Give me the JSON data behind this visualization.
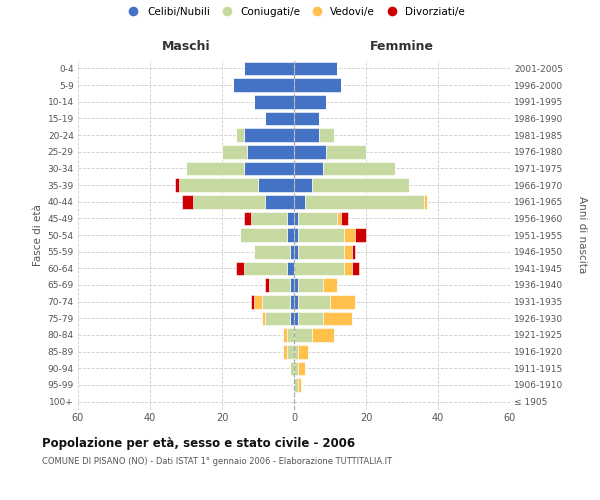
{
  "age_groups": [
    "100+",
    "95-99",
    "90-94",
    "85-89",
    "80-84",
    "75-79",
    "70-74",
    "65-69",
    "60-64",
    "55-59",
    "50-54",
    "45-49",
    "40-44",
    "35-39",
    "30-34",
    "25-29",
    "20-24",
    "15-19",
    "10-14",
    "5-9",
    "0-4"
  ],
  "birth_years": [
    "≤ 1905",
    "1906-1910",
    "1911-1915",
    "1916-1920",
    "1921-1925",
    "1926-1930",
    "1931-1935",
    "1936-1940",
    "1941-1945",
    "1946-1950",
    "1951-1955",
    "1956-1960",
    "1961-1965",
    "1966-1970",
    "1971-1975",
    "1976-1980",
    "1981-1985",
    "1986-1990",
    "1991-1995",
    "1996-2000",
    "2001-2005"
  ],
  "male_celibi": [
    0,
    0,
    0,
    0,
    0,
    1,
    1,
    1,
    2,
    1,
    2,
    2,
    8,
    10,
    14,
    13,
    14,
    8,
    11,
    17,
    14
  ],
  "male_coniugati": [
    0,
    0,
    1,
    2,
    2,
    7,
    8,
    6,
    12,
    10,
    13,
    10,
    20,
    22,
    16,
    7,
    2,
    0,
    0,
    0,
    0
  ],
  "male_vedovi": [
    0,
    0,
    0,
    1,
    1,
    1,
    2,
    0,
    0,
    0,
    0,
    0,
    0,
    0,
    0,
    0,
    0,
    0,
    0,
    0,
    0
  ],
  "male_divorziati": [
    0,
    0,
    0,
    0,
    0,
    0,
    1,
    1,
    2,
    0,
    0,
    2,
    3,
    1,
    0,
    0,
    0,
    0,
    0,
    0,
    0
  ],
  "female_nubili": [
    0,
    0,
    0,
    0,
    0,
    1,
    1,
    1,
    0,
    1,
    1,
    1,
    3,
    5,
    8,
    9,
    7,
    7,
    9,
    13,
    12
  ],
  "female_coniugate": [
    0,
    1,
    1,
    1,
    5,
    7,
    9,
    7,
    14,
    13,
    13,
    11,
    33,
    27,
    20,
    11,
    4,
    0,
    0,
    0,
    0
  ],
  "female_vedove": [
    0,
    1,
    2,
    3,
    6,
    8,
    7,
    4,
    2,
    2,
    3,
    1,
    1,
    0,
    0,
    0,
    0,
    0,
    0,
    0,
    0
  ],
  "female_divorziate": [
    0,
    0,
    0,
    0,
    0,
    0,
    0,
    0,
    2,
    1,
    3,
    2,
    0,
    0,
    0,
    0,
    0,
    0,
    0,
    0,
    0
  ],
  "color_celibi": "#4472c4",
  "color_coniugati": "#c5d9a0",
  "color_vedovi": "#ffc04c",
  "color_divorziati": "#cc0000",
  "xlim": 60,
  "title": "Popolazione per età, sesso e stato civile - 2006",
  "subtitle": "COMUNE DI PISANO (NO) - Dati ISTAT 1° gennaio 2006 - Elaborazione TUTTITALIA.IT",
  "ylabel_left": "Fasce di età",
  "ylabel_right": "Anni di nascita",
  "label_maschi": "Maschi",
  "label_femmine": "Femmine",
  "legend_celibi": "Celibi/Nubili",
  "legend_coniugati": "Coniugati/e",
  "legend_vedovi": "Vedovi/e",
  "legend_divorziati": "Divorziati/e",
  "bg_color": "#ffffff",
  "grid_color": "#cccccc",
  "bar_height": 0.82
}
